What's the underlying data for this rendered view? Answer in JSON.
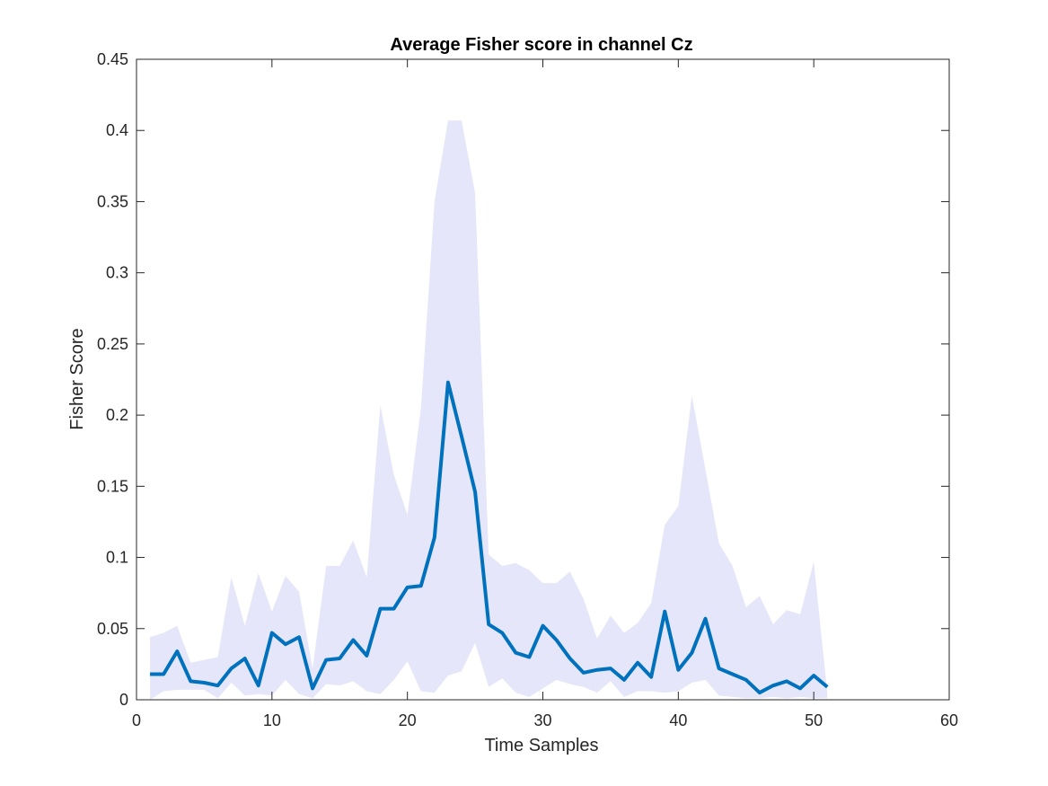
{
  "chart_data": {
    "type": "area",
    "title": "Average Fisher score in channel Cz",
    "xlabel": "Time Samples",
    "ylabel": "Fisher Score",
    "xlim": [
      0,
      60
    ],
    "ylim": [
      0,
      0.45
    ],
    "xticks": [
      0,
      10,
      20,
      30,
      40,
      50,
      60
    ],
    "xtick_labels": [
      "0",
      "10",
      "20",
      "30",
      "40",
      "50",
      "60"
    ],
    "yticks": [
      0,
      0.05,
      0.1,
      0.15,
      0.2,
      0.25,
      0.3,
      0.35,
      0.4,
      0.45
    ],
    "ytick_labels": [
      "0",
      "0.05",
      "0.1",
      "0.15",
      "0.2",
      "0.25",
      "0.3",
      "0.35",
      "0.4",
      "0.45"
    ],
    "grid": false,
    "x": [
      1,
      2,
      3,
      4,
      5,
      6,
      7,
      8,
      9,
      10,
      11,
      12,
      13,
      14,
      15,
      16,
      17,
      18,
      19,
      20,
      21,
      22,
      23,
      24,
      25,
      26,
      27,
      28,
      29,
      30,
      31,
      32,
      33,
      34,
      35,
      36,
      37,
      38,
      39,
      40,
      41,
      42,
      43,
      44,
      45,
      46,
      47,
      48,
      49,
      50,
      51
    ],
    "series": [
      {
        "role": "band",
        "color": "#e6e6fa",
        "upper": [
          0.044,
          0.047,
          0.052,
          0.026,
          0.028,
          0.03,
          0.086,
          0.052,
          0.089,
          0.062,
          0.087,
          0.076,
          0.022,
          0.094,
          0.094,
          0.112,
          0.086,
          0.207,
          0.158,
          0.13,
          0.205,
          0.35,
          0.407,
          0.407,
          0.356,
          0.102,
          0.094,
          0.096,
          0.091,
          0.082,
          0.082,
          0.09,
          0.071,
          0.043,
          0.059,
          0.047,
          0.054,
          0.068,
          0.123,
          0.136,
          0.214,
          0.162,
          0.11,
          0.094,
          0.065,
          0.073,
          0.053,
          0.063,
          0.06,
          0.097,
          0.005
        ],
        "lower": [
          0.0,
          0.006,
          0.007,
          0.007,
          0.007,
          0.001,
          0.012,
          0.003,
          0.004,
          0.003,
          0.014,
          0.004,
          0.001,
          0.011,
          0.01,
          0.013,
          0.006,
          0.004,
          0.014,
          0.027,
          0.006,
          0.005,
          0.017,
          0.02,
          0.04,
          0.009,
          0.015,
          0.005,
          0.002,
          0.008,
          0.014,
          0.011,
          0.009,
          0.005,
          0.013,
          0.002,
          0.006,
          0.006,
          0.005,
          0.006,
          0.012,
          0.014,
          0.003,
          0.002,
          0.001,
          0.001,
          0.002,
          0.001,
          0.002,
          0.001,
          0.001
        ]
      },
      {
        "role": "line",
        "color": "#0072bd",
        "values": [
          0.018,
          0.018,
          0.034,
          0.013,
          0.012,
          0.01,
          0.022,
          0.029,
          0.01,
          0.047,
          0.039,
          0.044,
          0.008,
          0.028,
          0.029,
          0.042,
          0.031,
          0.064,
          0.064,
          0.079,
          0.08,
          0.114,
          0.223,
          0.185,
          0.146,
          0.053,
          0.047,
          0.033,
          0.03,
          0.052,
          0.042,
          0.029,
          0.019,
          0.021,
          0.022,
          0.014,
          0.026,
          0.016,
          0.062,
          0.021,
          0.033,
          0.057,
          0.022,
          0.018,
          0.014,
          0.005,
          0.01,
          0.013,
          0.008,
          0.017,
          0.009
        ]
      }
    ]
  }
}
